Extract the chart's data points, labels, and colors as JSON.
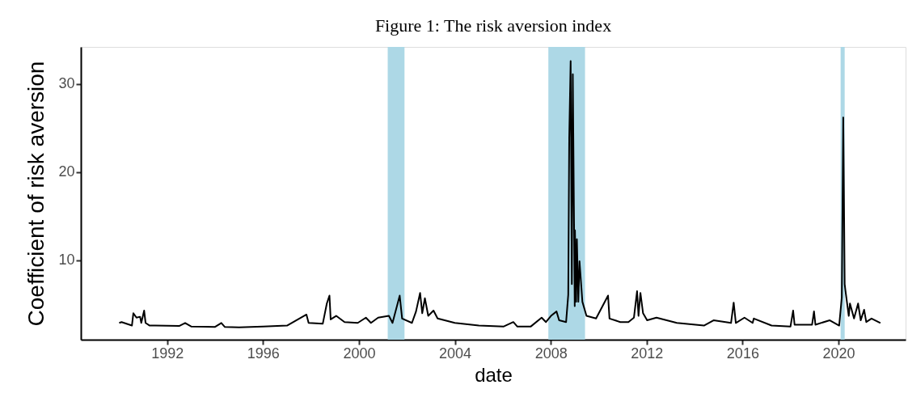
{
  "chart_data": {
    "type": "line",
    "title": "Figure 1: The risk aversion index",
    "xlabel": "date",
    "ylabel": "Coefficient of risk aversion",
    "x": [
      1990.0,
      1990.1,
      1990.53,
      1990.59,
      1990.72,
      1990.87,
      1990.92,
      1991.04,
      1991.1,
      1991.27,
      1991.5,
      1992.5,
      1992.75,
      1993.0,
      1994.0,
      1994.26,
      1994.4,
      1995.0,
      1996.0,
      1997.0,
      1997.81,
      1997.9,
      1998.49,
      1998.66,
      1998.77,
      1998.82,
      1999.05,
      1999.4,
      1999.95,
      2000.29,
      2000.5,
      2000.8,
      2001.25,
      2001.4,
      2001.7,
      2001.8,
      2002.21,
      2002.38,
      2002.55,
      2002.64,
      2002.75,
      2002.89,
      2003.11,
      2003.28,
      2004.0,
      2005.0,
      2006.04,
      2006.44,
      2006.6,
      2007.17,
      2007.62,
      2007.8,
      2008.01,
      2008.24,
      2008.35,
      2008.64,
      2008.73,
      2008.77,
      2008.83,
      2008.88,
      2008.92,
      2009.0,
      2009.01,
      2009.06,
      2009.09,
      2009.15,
      2009.2,
      2009.32,
      2009.49,
      2009.89,
      2010.39,
      2010.45,
      2010.9,
      2011.24,
      2011.47,
      2011.6,
      2011.66,
      2011.74,
      2011.85,
      2012.02,
      2012.41,
      2013.26,
      2014.39,
      2014.79,
      2015.52,
      2015.63,
      2015.72,
      2016.08,
      2016.42,
      2016.47,
      2017.21,
      2018.0,
      2018.11,
      2018.17,
      2018.9,
      2018.98,
      2019.04,
      2019.64,
      2020.03,
      2020.14,
      2020.2,
      2020.26,
      2020.29,
      2020.43,
      2020.48,
      2020.65,
      2020.82,
      2020.93,
      2021.07,
      2021.16,
      2021.38,
      2021.75
    ],
    "series": [
      {
        "color": "#000000",
        "values": [
          2.9,
          3.0,
          2.6,
          4.0,
          3.5,
          3.6,
          2.9,
          4.3,
          2.9,
          2.6,
          2.6,
          2.55,
          2.9,
          2.5,
          2.45,
          2.9,
          2.45,
          2.4,
          2.5,
          2.6,
          3.85,
          2.9,
          2.8,
          5.1,
          6.0,
          3.3,
          3.7,
          3.0,
          2.9,
          3.5,
          2.9,
          3.5,
          3.7,
          2.9,
          6.0,
          3.4,
          2.9,
          4.2,
          6.3,
          4.0,
          5.7,
          3.7,
          4.3,
          3.4,
          2.9,
          2.6,
          2.5,
          3.0,
          2.5,
          2.5,
          3.5,
          3.0,
          3.7,
          4.2,
          3.2,
          3.0,
          6.1,
          23.8,
          32.6,
          7.3,
          31.1,
          4.8,
          13.4,
          5.3,
          12.4,
          5.3,
          9.9,
          5.3,
          3.7,
          3.4,
          6.0,
          3.4,
          3.0,
          3.0,
          3.5,
          6.5,
          3.7,
          6.3,
          4.0,
          3.2,
          3.5,
          2.9,
          2.6,
          3.2,
          2.9,
          5.2,
          2.9,
          3.5,
          2.9,
          3.4,
          2.6,
          2.5,
          4.3,
          2.7,
          2.7,
          4.2,
          2.7,
          3.2,
          2.6,
          5.8,
          26.2,
          7.3,
          6.6,
          3.7,
          5.1,
          3.4,
          5.1,
          3.2,
          4.4,
          3.0,
          3.4,
          2.9
        ]
      }
    ],
    "bands": [
      {
        "axis": "x",
        "from": 2001.2,
        "to": 2001.9,
        "color": "#add8e6"
      },
      {
        "axis": "x",
        "from": 2007.9,
        "to": 2009.43,
        "color": "#add8e6"
      },
      {
        "axis": "x",
        "from": 2020.09,
        "to": 2020.26,
        "color": "#add8e6"
      }
    ],
    "xlim": [
      1988.4,
      2022.8
    ],
    "xticks": [
      1992,
      1996,
      2000,
      2004,
      2008,
      2012,
      2016,
      2020
    ],
    "ylim": [
      1.0,
      34.2
    ],
    "yticks": [
      10,
      20,
      30
    ],
    "grid": false,
    "legend": false,
    "line_style": "solid",
    "marker": "none"
  }
}
